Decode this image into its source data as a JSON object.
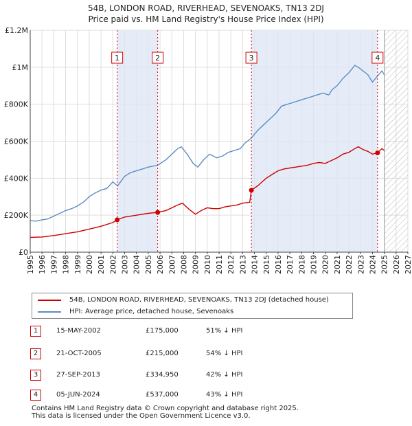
{
  "title_line1": "54B, LONDON ROAD, RIVERHEAD, SEVENOAKS, TN13 2DJ",
  "title_line2": "Price paid vs. HM Land Registry's House Price Index (HPI)",
  "colors": {
    "property": "#cc0000",
    "hpi": "#5b8cc4",
    "grid": "#dddddd",
    "shade": "#dde6f4",
    "marker_line": "#cc0000"
  },
  "legend": {
    "property_label": "54B, LONDON ROAD, RIVERHEAD, SEVENOAKS, TN13 2DJ (detached house)",
    "hpi_label": "HPI: Average price, detached house, Sevenoaks"
  },
  "sales": [
    {
      "num": "1",
      "date": "15-MAY-2002",
      "price": "£175,000",
      "hpi": "51% ↓ HPI"
    },
    {
      "num": "2",
      "date": "21-OCT-2005",
      "price": "£215,000",
      "hpi": "54% ↓ HPI"
    },
    {
      "num": "3",
      "date": "27-SEP-2013",
      "price": "£334,950",
      "hpi": "42% ↓ HPI"
    },
    {
      "num": "4",
      "date": "05-JUN-2024",
      "price": "£537,000",
      "hpi": "43% ↓ HPI"
    }
  ],
  "footer_line1": "Contains HM Land Registry data © Crown copyright and database right 2025.",
  "footer_line2": "This data is licensed under the Open Government Licence v3.0.",
  "chart_data": {
    "type": "line",
    "title": "54B, LONDON ROAD, RIVERHEAD, SEVENOAKS, TN13 2DJ",
    "subtitle": "Price paid vs. HM Land Registry's House Price Index (HPI)",
    "xlabel": "",
    "ylabel": "",
    "xlim": [
      1995,
      2027
    ],
    "ylim": [
      0,
      1200000
    ],
    "x_ticks": [
      "1995",
      "1996",
      "1997",
      "1998",
      "1999",
      "2000",
      "2001",
      "2002",
      "2003",
      "2004",
      "2005",
      "2006",
      "2007",
      "2008",
      "2009",
      "2010",
      "2011",
      "2012",
      "2013",
      "2014",
      "2015",
      "2016",
      "2017",
      "2018",
      "2019",
      "2020",
      "2021",
      "2022",
      "2023",
      "2024",
      "2025",
      "2026",
      "2027"
    ],
    "y_ticks": [
      {
        "value": 0,
        "label": "£0"
      },
      {
        "value": 200000,
        "label": "£200K"
      },
      {
        "value": 400000,
        "label": "£400K"
      },
      {
        "value": 600000,
        "label": "£600K"
      },
      {
        "value": 800000,
        "label": "£800K"
      },
      {
        "value": 1000000,
        "label": "£1M"
      },
      {
        "value": 1200000,
        "label": "£1.2M"
      }
    ],
    "grid": true,
    "hatched_after": 2025.0,
    "series": [
      {
        "name": "HPI: Average price, detached house, Sevenoaks",
        "x": [
          1995.0,
          1995.5,
          1996.0,
          1996.5,
          1997.0,
          1997.5,
          1998.0,
          1998.5,
          1999.0,
          1999.5,
          2000.0,
          2000.5,
          2001.0,
          2001.5,
          2002.0,
          2002.4,
          2003.0,
          2003.5,
          2004.0,
          2004.5,
          2005.0,
          2005.8,
          2006.5,
          2007.0,
          2007.5,
          2007.8,
          2008.3,
          2008.8,
          2009.2,
          2009.7,
          2010.2,
          2010.8,
          2011.3,
          2011.8,
          2012.3,
          2012.8,
          2013.2,
          2013.7,
          2014.3,
          2014.8,
          2015.3,
          2015.8,
          2016.3,
          2016.8,
          2017.3,
          2017.8,
          2018.3,
          2018.8,
          2019.3,
          2019.8,
          2020.3,
          2020.6,
          2021.0,
          2021.5,
          2022.0,
          2022.5,
          2022.8,
          2023.2,
          2023.6,
          2024.0,
          2024.4,
          2024.8,
          2025.0
        ],
        "values": [
          170000,
          168000,
          175000,
          180000,
          195000,
          210000,
          225000,
          235000,
          250000,
          270000,
          300000,
          320000,
          335000,
          345000,
          380000,
          358000,
          410000,
          430000,
          440000,
          450000,
          460000,
          470000,
          500000,
          530000,
          560000,
          570000,
          530000,
          480000,
          460000,
          500000,
          530000,
          510000,
          520000,
          540000,
          550000,
          560000,
          590000,
          615000,
          660000,
          690000,
          720000,
          750000,
          790000,
          800000,
          810000,
          820000,
          830000,
          840000,
          850000,
          860000,
          850000,
          880000,
          900000,
          940000,
          970000,
          1010000,
          1000000,
          980000,
          960000,
          920000,
          950000,
          980000,
          960000
        ]
      },
      {
        "name": "54B, LONDON ROAD, RIVERHEAD, SEVENOAKS, TN13 2DJ (detached house)",
        "x": [
          1995.0,
          1996.0,
          1997.0,
          1998.0,
          1999.0,
          2000.0,
          2001.0,
          2002.0,
          2002.37,
          2003.0,
          2004.0,
          2005.0,
          2005.8,
          2006.5,
          2007.0,
          2007.5,
          2007.9,
          2008.5,
          2009.0,
          2009.5,
          2010.0,
          2010.5,
          2011.0,
          2011.5,
          2012.0,
          2012.5,
          2013.0,
          2013.6,
          2013.74,
          2014.3,
          2015.0,
          2015.5,
          2016.0,
          2016.5,
          2017.0,
          2017.5,
          2018.0,
          2018.5,
          2019.0,
          2019.5,
          2020.0,
          2020.5,
          2021.0,
          2021.5,
          2022.0,
          2022.5,
          2022.8,
          2023.2,
          2023.6,
          2024.0,
          2024.43,
          2024.8,
          2025.0
        ],
        "values": [
          80000,
          82000,
          90000,
          100000,
          110000,
          125000,
          140000,
          160000,
          175000,
          190000,
          200000,
          210000,
          215000,
          225000,
          240000,
          255000,
          265000,
          230000,
          205000,
          225000,
          240000,
          235000,
          235000,
          245000,
          250000,
          255000,
          265000,
          270000,
          334950,
          360000,
          400000,
          420000,
          440000,
          450000,
          455000,
          460000,
          465000,
          470000,
          480000,
          485000,
          480000,
          495000,
          510000,
          530000,
          540000,
          560000,
          570000,
          555000,
          545000,
          530000,
          537000,
          560000,
          550000
        ]
      }
    ],
    "markers": [
      {
        "label": "1",
        "x": 2002.37,
        "value": 175000
      },
      {
        "label": "2",
        "x": 2005.8,
        "value": 215000
      },
      {
        "label": "3",
        "x": 2013.74,
        "value": 334950
      },
      {
        "label": "4",
        "x": 2024.43,
        "value": 537000
      }
    ]
  }
}
